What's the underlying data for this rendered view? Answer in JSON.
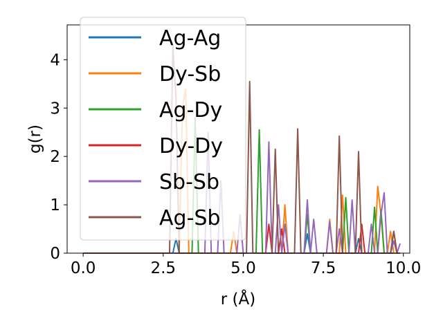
{
  "chart_data": {
    "type": "line",
    "title": "",
    "xlabel": "r (Å)",
    "ylabel": "g(r)",
    "xlim": [
      -0.5,
      10.2
    ],
    "ylim": [
      0,
      4.72
    ],
    "xticks": [
      0.0,
      2.5,
      5.0,
      7.5,
      10.0
    ],
    "xtick_labels": [
      "0.0",
      "2.5",
      "5.0",
      "7.5",
      "10.0"
    ],
    "yticks": [
      0,
      1,
      2,
      3,
      4
    ],
    "ytick_labels": [
      "0",
      "1",
      "2",
      "3",
      "4"
    ],
    "grid": false,
    "legend_position": "top-left",
    "series": [
      {
        "name": "Ag-Ag",
        "color": "#1f77b4",
        "x": [
          0.0,
          2.8,
          2.9,
          3.0,
          6.9,
          7.0,
          7.1,
          8.5,
          8.6,
          8.7,
          9.9
        ],
        "y": [
          0,
          0,
          0.3,
          0,
          0,
          0.4,
          0,
          0,
          0.3,
          0,
          0
        ]
      },
      {
        "name": "Dy-Sb",
        "color": "#ff7f0e",
        "x": [
          0.0,
          3.0,
          3.1,
          3.2,
          3.3,
          4.6,
          4.7,
          4.8,
          6.2,
          6.3,
          6.4,
          7.6,
          7.7,
          7.8,
          8.0,
          8.1,
          8.2,
          9.1,
          9.2,
          9.3,
          9.4,
          9.5,
          9.6,
          9.7,
          9.8
        ],
        "y": [
          0,
          0,
          3.0,
          3.4,
          0,
          0,
          0.45,
          0,
          0,
          1.0,
          0,
          0,
          0.7,
          0,
          0,
          1.2,
          0,
          0,
          1.38,
          0.8,
          0,
          0,
          0.45,
          0,
          0
        ]
      },
      {
        "name": "Ag-Dy",
        "color": "#2ca02c",
        "x": [
          0.0,
          3.4,
          3.5,
          3.6,
          5.4,
          5.5,
          5.6,
          6.9,
          7.0,
          7.1,
          8.1,
          8.2,
          8.3,
          9.0,
          9.1,
          9.2,
          9.3,
          9.4,
          9.5
        ],
        "y": [
          0,
          0,
          2.8,
          0,
          0,
          2.55,
          0,
          0,
          0.8,
          0,
          0,
          1.15,
          0,
          0,
          0.95,
          0,
          0.9,
          0,
          0
        ]
      },
      {
        "name": "Dy-Dy",
        "color": "#d62728",
        "x": [
          0.0,
          5.7,
          5.8,
          5.9,
          6.1,
          6.2,
          6.3,
          8.6,
          8.7,
          8.8,
          9.6,
          9.7,
          9.8
        ],
        "y": [
          0,
          0,
          0.6,
          0,
          0,
          0.5,
          0,
          0,
          0.6,
          0,
          0,
          0.45,
          0
        ]
      },
      {
        "name": "Sb-Sb",
        "color": "#9467bd",
        "x": [
          0.0,
          3.8,
          3.9,
          4.0,
          4.2,
          4.3,
          4.4,
          4.8,
          4.9,
          5.0,
          5.7,
          5.8,
          5.9,
          6.0,
          6.1,
          6.2,
          6.3,
          6.4,
          6.5,
          6.9,
          7.0,
          7.1,
          7.2,
          7.3,
          7.4,
          7.6,
          7.7,
          7.8,
          7.9,
          8.0,
          8.1,
          8.3,
          8.4,
          8.5,
          8.9,
          9.0,
          9.1,
          9.2,
          9.3,
          9.4,
          9.5,
          9.6,
          9.7,
          9.8,
          9.9
        ],
        "y": [
          0,
          0,
          2.5,
          0,
          0,
          1.5,
          0,
          0,
          0.8,
          0,
          0,
          2.3,
          0,
          0,
          1.0,
          0,
          0.6,
          0,
          0,
          0,
          1.1,
          0,
          0.7,
          0,
          0,
          0,
          0.65,
          0,
          0,
          0.5,
          0,
          0,
          1.1,
          0,
          0,
          0.6,
          0,
          0,
          0.8,
          1.25,
          0,
          0,
          0.25,
          0,
          0.2
        ]
      },
      {
        "name": "Ag-Sb",
        "color": "#8c564b",
        "x": [
          0.0,
          2.7,
          2.8,
          2.9,
          3.0,
          5.1,
          5.2,
          5.3,
          5.9,
          6.0,
          6.1,
          6.6,
          6.7,
          6.8,
          7.9,
          8.0,
          8.1,
          8.5,
          8.6,
          8.7,
          9.6,
          9.7,
          9.8,
          9.9
        ],
        "y": [
          0,
          0,
          4.3,
          3.2,
          0,
          0,
          3.55,
          0,
          0,
          2.15,
          0,
          0,
          2.57,
          0,
          0,
          2.42,
          0,
          0,
          2.1,
          0,
          0,
          0.45,
          0,
          0
        ]
      }
    ]
  }
}
